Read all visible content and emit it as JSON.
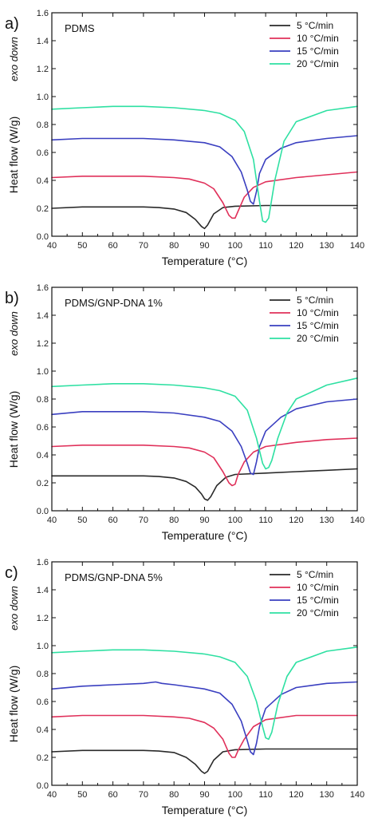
{
  "figure": {
    "ylabel": "Heat flow (W/g)",
    "exo_note": "exo down",
    "xlabel": "Temperature (°C)"
  },
  "legend_labels": [
    "5 °C/min",
    "10 °C/min",
    "15 °C/min",
    "20 °C/min"
  ],
  "colors": {
    "5 °C/min": "#2a2a2a",
    "10 °C/min": "#e0305a",
    "15 °C/min": "#3a3fc0",
    "20 °C/min": "#2ee0a2"
  },
  "chart_data": [
    {
      "type": "line",
      "panel": "a)",
      "title": "PDMS",
      "xlabel": "Temperature (°C)",
      "ylabel": "Heat flow (W/g)",
      "xlim": [
        40,
        140
      ],
      "ylim": [
        0.0,
        1.6
      ],
      "xticks": [
        40,
        50,
        60,
        70,
        80,
        90,
        100,
        110,
        120,
        130,
        140
      ],
      "yticks": [
        0.0,
        0.2,
        0.4,
        0.6,
        0.8,
        1.0,
        1.2,
        1.4,
        1.6
      ],
      "legend_position": "top-right",
      "series": [
        {
          "name": "5 °C/min",
          "x": [
            40,
            50,
            60,
            70,
            75,
            80,
            84,
            87,
            89,
            90,
            91,
            93,
            96,
            100,
            110,
            120,
            130,
            140
          ],
          "y": [
            0.2,
            0.21,
            0.21,
            0.21,
            0.205,
            0.195,
            0.17,
            0.12,
            0.07,
            0.055,
            0.08,
            0.16,
            0.205,
            0.215,
            0.22,
            0.22,
            0.22,
            0.22
          ]
        },
        {
          "name": "10 °C/min",
          "x": [
            40,
            50,
            60,
            70,
            80,
            85,
            90,
            93,
            96,
            98,
            99,
            100,
            101,
            103,
            106,
            110,
            120,
            130,
            140
          ],
          "y": [
            0.42,
            0.43,
            0.43,
            0.43,
            0.42,
            0.41,
            0.38,
            0.34,
            0.24,
            0.15,
            0.13,
            0.13,
            0.18,
            0.28,
            0.35,
            0.39,
            0.42,
            0.44,
            0.46
          ]
        },
        {
          "name": "15 °C/min",
          "x": [
            40,
            50,
            60,
            70,
            80,
            90,
            95,
            99,
            102,
            104,
            105,
            106,
            107,
            108,
            110,
            115,
            120,
            130,
            140
          ],
          "y": [
            0.69,
            0.7,
            0.7,
            0.7,
            0.69,
            0.67,
            0.64,
            0.57,
            0.46,
            0.33,
            0.25,
            0.23,
            0.32,
            0.45,
            0.55,
            0.63,
            0.67,
            0.7,
            0.72
          ]
        },
        {
          "name": "20 °C/min",
          "x": [
            40,
            50,
            60,
            70,
            80,
            90,
            95,
            100,
            103,
            106,
            108,
            109,
            110,
            111,
            113,
            116,
            120,
            130,
            140
          ],
          "y": [
            0.91,
            0.92,
            0.93,
            0.93,
            0.92,
            0.9,
            0.88,
            0.83,
            0.75,
            0.55,
            0.25,
            0.11,
            0.1,
            0.13,
            0.4,
            0.68,
            0.82,
            0.9,
            0.93
          ]
        }
      ]
    },
    {
      "type": "line",
      "panel": "b)",
      "title": "PDMS/GNP-DNA 1%",
      "xlabel": "Temperature (°C)",
      "ylabel": "Heat flow (W/g)",
      "xlim": [
        40,
        140
      ],
      "ylim": [
        0.0,
        1.6
      ],
      "xticks": [
        40,
        50,
        60,
        70,
        80,
        90,
        100,
        110,
        120,
        130,
        140
      ],
      "yticks": [
        0.0,
        0.2,
        0.4,
        0.6,
        0.8,
        1.0,
        1.2,
        1.4,
        1.6
      ],
      "legend_position": "top-right",
      "series": [
        {
          "name": "5 °C/min",
          "x": [
            40,
            50,
            60,
            70,
            75,
            80,
            84,
            87,
            89,
            90,
            91,
            92,
            94,
            97,
            100,
            110,
            120,
            130,
            140
          ],
          "y": [
            0.25,
            0.25,
            0.25,
            0.25,
            0.245,
            0.235,
            0.21,
            0.17,
            0.12,
            0.085,
            0.075,
            0.1,
            0.18,
            0.24,
            0.26,
            0.27,
            0.28,
            0.29,
            0.3
          ]
        },
        {
          "name": "10 °C/min",
          "x": [
            40,
            50,
            60,
            70,
            80,
            85,
            90,
            93,
            96,
            98,
            99,
            100,
            101,
            103,
            106,
            110,
            120,
            130,
            140
          ],
          "y": [
            0.46,
            0.47,
            0.47,
            0.47,
            0.46,
            0.45,
            0.42,
            0.38,
            0.28,
            0.2,
            0.18,
            0.19,
            0.26,
            0.35,
            0.42,
            0.46,
            0.49,
            0.51,
            0.52
          ]
        },
        {
          "name": "15 °C/min",
          "x": [
            40,
            50,
            60,
            70,
            80,
            90,
            95,
            99,
            102,
            104,
            105,
            106,
            107,
            108,
            110,
            115,
            120,
            130,
            140
          ],
          "y": [
            0.69,
            0.71,
            0.71,
            0.71,
            0.7,
            0.67,
            0.64,
            0.57,
            0.46,
            0.34,
            0.27,
            0.26,
            0.35,
            0.46,
            0.57,
            0.67,
            0.73,
            0.78,
            0.8
          ]
        },
        {
          "name": "20 °C/min",
          "x": [
            40,
            50,
            60,
            70,
            80,
            90,
            95,
            100,
            104,
            107,
            109,
            110,
            111,
            112,
            114,
            117,
            120,
            130,
            140
          ],
          "y": [
            0.89,
            0.9,
            0.91,
            0.91,
            0.9,
            0.88,
            0.86,
            0.82,
            0.72,
            0.52,
            0.34,
            0.3,
            0.31,
            0.36,
            0.52,
            0.7,
            0.8,
            0.9,
            0.95
          ]
        }
      ]
    },
    {
      "type": "line",
      "panel": "c)",
      "title": "PDMS/GNP-DNA 5%",
      "xlabel": "Temperature (°C)",
      "ylabel": "Heat flow (W/g)",
      "xlim": [
        40,
        140
      ],
      "ylim": [
        0.0,
        1.6
      ],
      "xticks": [
        40,
        50,
        60,
        70,
        80,
        90,
        100,
        110,
        120,
        130,
        140
      ],
      "yticks": [
        0.0,
        0.2,
        0.4,
        0.6,
        0.8,
        1.0,
        1.2,
        1.4,
        1.6
      ],
      "legend_position": "top-right",
      "series": [
        {
          "name": "5 °C/min",
          "x": [
            40,
            50,
            60,
            70,
            75,
            80,
            84,
            87,
            89,
            90,
            91,
            93,
            96,
            100,
            110,
            120,
            130,
            140
          ],
          "y": [
            0.24,
            0.25,
            0.25,
            0.25,
            0.245,
            0.235,
            0.2,
            0.15,
            0.1,
            0.085,
            0.1,
            0.18,
            0.24,
            0.255,
            0.26,
            0.26,
            0.26,
            0.26
          ]
        },
        {
          "name": "10 °C/min",
          "x": [
            40,
            50,
            60,
            70,
            80,
            85,
            90,
            93,
            96,
            98,
            99,
            100,
            101,
            103,
            106,
            110,
            120,
            130,
            140
          ],
          "y": [
            0.49,
            0.5,
            0.5,
            0.5,
            0.49,
            0.48,
            0.45,
            0.41,
            0.33,
            0.23,
            0.2,
            0.2,
            0.25,
            0.33,
            0.42,
            0.47,
            0.5,
            0.5,
            0.5
          ]
        },
        {
          "name": "15 °C/min",
          "x": [
            40,
            50,
            60,
            70,
            74,
            76,
            80,
            90,
            95,
            99,
            102,
            104,
            105,
            106,
            107,
            108,
            110,
            115,
            120,
            130,
            140
          ],
          "y": [
            0.69,
            0.71,
            0.72,
            0.73,
            0.74,
            0.73,
            0.72,
            0.69,
            0.66,
            0.58,
            0.46,
            0.32,
            0.24,
            0.22,
            0.3,
            0.42,
            0.55,
            0.65,
            0.7,
            0.73,
            0.74
          ]
        },
        {
          "name": "20 °C/min",
          "x": [
            40,
            50,
            60,
            70,
            80,
            90,
            95,
            100,
            104,
            107,
            109,
            110,
            111,
            112,
            114,
            117,
            120,
            130,
            140
          ],
          "y": [
            0.95,
            0.96,
            0.97,
            0.97,
            0.96,
            0.94,
            0.92,
            0.88,
            0.78,
            0.6,
            0.42,
            0.34,
            0.33,
            0.38,
            0.58,
            0.78,
            0.88,
            0.96,
            0.99
          ]
        }
      ]
    }
  ]
}
